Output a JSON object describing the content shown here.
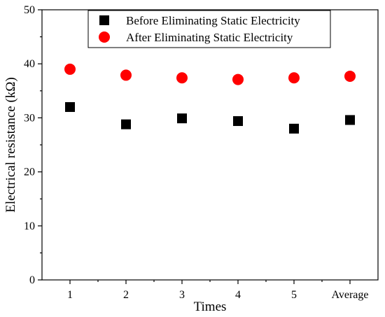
{
  "chart_data": {
    "type": "scatter",
    "categories": [
      "1",
      "2",
      "3",
      "4",
      "5",
      "Average"
    ],
    "series": [
      {
        "name": "Before Eliminating Static Electricity",
        "marker": "square",
        "color": "#000000",
        "values": [
          32.0,
          28.8,
          29.9,
          29.4,
          28.0,
          29.6
        ]
      },
      {
        "name": "After Eliminating Static Electricity",
        "marker": "circle",
        "color": "#ff0000",
        "values": [
          39.0,
          37.9,
          37.4,
          37.1,
          37.4,
          37.7
        ]
      }
    ],
    "xlabel": "Times",
    "ylabel": "Electrical resistance (kΩ)",
    "ylim": [
      0,
      50
    ],
    "yticks": [
      0,
      10,
      20,
      30,
      40,
      50
    ],
    "grid": false,
    "legend_position": "top-right"
  }
}
